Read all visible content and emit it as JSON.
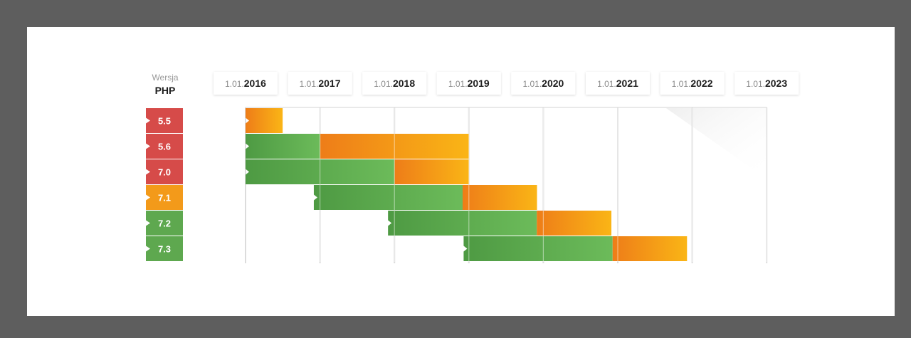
{
  "chart_data": {
    "type": "gantt",
    "header": {
      "line1": "Wersja",
      "line2": "PHP"
    },
    "date_prefix": "1.01.",
    "years": [
      "2016",
      "2017",
      "2018",
      "2019",
      "2020",
      "2021",
      "2022",
      "2023"
    ],
    "x_range": [
      "2016-01-01",
      "2023-01-01"
    ],
    "colors": {
      "active_support": "#5ea84f",
      "security_support": "#f39a1a",
      "end_of_life": "#d64b49"
    },
    "versions": [
      {
        "version": "5.5",
        "status": "end_of_life",
        "active": null,
        "security": [
          "2016-01-01",
          "2016-07-01"
        ]
      },
      {
        "version": "5.6",
        "status": "end_of_life",
        "active": [
          "2016-01-01",
          "2017-01-01"
        ],
        "security": [
          "2017-01-01",
          "2019-01-01"
        ]
      },
      {
        "version": "7.0",
        "status": "end_of_life",
        "active": [
          "2016-01-01",
          "2018-01-01"
        ],
        "security": [
          "2018-01-01",
          "2019-01-01"
        ]
      },
      {
        "version": "7.1",
        "status": "security_support",
        "active": [
          "2016-12-01",
          "2018-12-01"
        ],
        "security": [
          "2018-12-01",
          "2019-12-01"
        ]
      },
      {
        "version": "7.2",
        "status": "active_support",
        "active": [
          "2017-11-30",
          "2019-11-30"
        ],
        "security": [
          "2019-11-30",
          "2020-11-30"
        ]
      },
      {
        "version": "7.3",
        "status": "active_support",
        "active": [
          "2018-12-06",
          "2020-12-06"
        ],
        "security": [
          "2020-12-06",
          "2021-12-06"
        ]
      }
    ]
  }
}
